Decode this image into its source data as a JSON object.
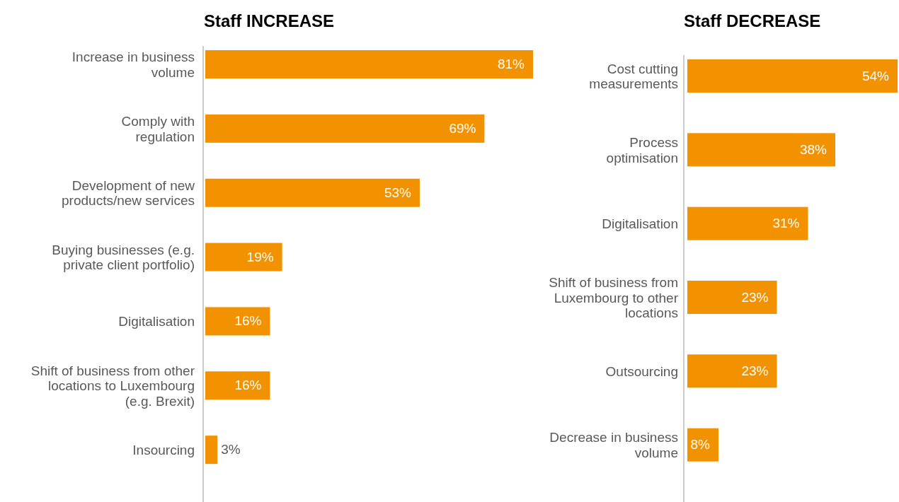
{
  "chart_data": [
    {
      "type": "bar",
      "orientation": "horizontal",
      "title": "Staff INCREASE",
      "categories": [
        "Increase in business\nvolume",
        "Comply with\nregulation",
        "Development of new\nproducts/new services",
        "Buying businesses (e.g.\nprivate client portfolio)",
        "Digitalisation",
        "Shift of business from other\nlocations to Luxembourg\n(e.g. Brexit)",
        "Insourcing"
      ],
      "values": [
        81,
        69,
        53,
        19,
        16,
        16,
        3
      ],
      "value_labels": [
        "81%",
        "69%",
        "53%",
        "19%",
        "16%",
        "16%",
        "3%"
      ],
      "color": "#f39200"
    },
    {
      "type": "bar",
      "orientation": "horizontal",
      "title": "Staff DECREASE",
      "categories": [
        "Cost cutting\nmeasurements",
        "Process\noptimisation",
        "Digitalisation",
        "Shift of business from\nLuxembourg to other\nlocations",
        "Outsourcing",
        "Decrease in business\nvolume"
      ],
      "values": [
        54,
        38,
        31,
        23,
        23,
        8
      ],
      "value_labels": [
        "54%",
        "38%",
        "31%",
        "23%",
        "23%",
        "8%"
      ],
      "color": "#f39200"
    }
  ]
}
